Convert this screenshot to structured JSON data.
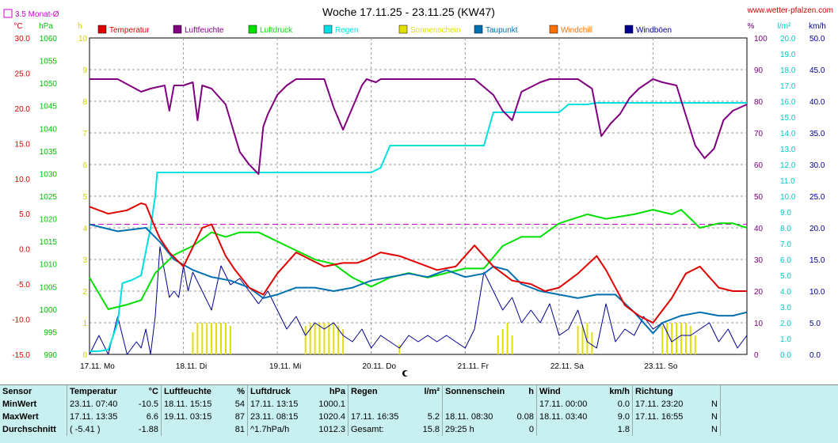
{
  "title": "Woche 17.11.25 - 23.11.25 (KW47)",
  "site": "www.wetter-pfalzen.com",
  "monthly_avg_label": "3.5 Monat-Ø",
  "colors": {
    "temp": "#e00000",
    "hum": "#800080",
    "press": "#00e000",
    "rain": "#00e0e0",
    "sun": "#e0e000",
    "dew": "#0070b0",
    "chill": "#ff7000",
    "gust": "#000090",
    "avg_line": "#d000d0"
  },
  "chart_data": {
    "type": "line",
    "title": "Woche 17.11.25 - 23.11.25 (KW47)",
    "x_days": [
      "17.11. Mo",
      "18.11. Di",
      "19.11. Mi",
      "20.11. Do",
      "21.11. Fr",
      "22.11. Sa",
      "23.11. So"
    ],
    "axes": {
      "temp": {
        "unit": "°C",
        "range": [
          -15,
          30
        ],
        "ticks": [
          "30.0",
          "25.0",
          "20.0",
          "15.0",
          "10.0",
          "5.0",
          "0.0",
          "-5.0",
          "-10.0",
          "-15.0"
        ]
      },
      "press": {
        "unit": "hPa",
        "range": [
          990,
          1060
        ],
        "ticks": [
          "1060",
          "1055",
          "1050",
          "1045",
          "1040",
          "1035",
          "1030",
          "1025",
          "1020",
          "1015",
          "1010",
          "1005",
          "1000",
          "995",
          "990"
        ]
      },
      "sun": {
        "unit": "h",
        "range": [
          0,
          10
        ],
        "ticks": [
          "10",
          "9",
          "8",
          "7",
          "6",
          "5",
          "4",
          "3",
          "2",
          "1",
          "0"
        ]
      },
      "hum": {
        "unit": "%",
        "range": [
          0,
          100
        ],
        "ticks": [
          "100",
          "90",
          "80",
          "70",
          "60",
          "50",
          "40",
          "30",
          "20",
          "10",
          "0"
        ]
      },
      "rain": {
        "unit": "l/m²",
        "range": [
          0,
          20
        ],
        "ticks": [
          "20.0",
          "19.0",
          "18.0",
          "17.0",
          "16.0",
          "15.0",
          "14.0",
          "13.0",
          "12.0",
          "11.0",
          "10.0",
          "9.0",
          "8.0",
          "7.0",
          "6.0",
          "5.0",
          "4.0",
          "3.0",
          "2.0",
          "1.0",
          "0.0"
        ]
      },
      "wind": {
        "unit": "km/h",
        "range": [
          0,
          50
        ],
        "ticks": [
          "50.0",
          "45.0",
          "40.0",
          "35.0",
          "30.0",
          "25.0",
          "20.0",
          "15.0",
          "10.0",
          "5.0",
          "0.0"
        ]
      }
    },
    "legend": [
      "Temperatur",
      "Luftfeuchte",
      "Luftdruck",
      "Regen",
      "Sonnenschein",
      "Taupunkt",
      "Windchill",
      "Windböen"
    ],
    "monthly_avg_temp": 3.5,
    "series": [
      {
        "name": "Temperatur",
        "axis": "temp",
        "color": "#e00000",
        "x": [
          0,
          0.2,
          0.4,
          0.55,
          0.6,
          0.7,
          0.75,
          0.85,
          1.0,
          1.2,
          1.3,
          1.45,
          1.55,
          1.7,
          1.85,
          2.0,
          2.2,
          2.35,
          2.5,
          2.7,
          2.85,
          2.95,
          3.1,
          3.3,
          3.5,
          3.7,
          3.9,
          4.1,
          4.3,
          4.5,
          4.7,
          4.85,
          5.0,
          5.2,
          5.4,
          5.5,
          5.7,
          5.85,
          6.0,
          6.2,
          6.35,
          6.5,
          6.7,
          6.85,
          7.0
        ],
        "y": [
          6.0,
          5.0,
          5.5,
          6.5,
          6.3,
          3.0,
          1.5,
          -0.5,
          -2.5,
          3.0,
          3.5,
          -1.0,
          -3.0,
          -5.5,
          -6.5,
          -3.5,
          -0.5,
          -1.5,
          -2.5,
          -2.0,
          -2.0,
          -1.5,
          -0.5,
          -1.0,
          -2.0,
          -3.0,
          -2.5,
          0.5,
          -2.5,
          -4.5,
          -5.0,
          -6.0,
          -5.5,
          -3.5,
          -1.0,
          -3.0,
          -8.0,
          -9.5,
          -10.5,
          -7.0,
          -3.5,
          -2.5,
          -5.5,
          -6.0,
          -6.0
        ]
      },
      {
        "name": "Taupunkt",
        "axis": "temp",
        "color": "#0070b0",
        "x": [
          0,
          0.3,
          0.6,
          0.75,
          0.9,
          1.1,
          1.3,
          1.5,
          1.7,
          1.85,
          2.0,
          2.2,
          2.4,
          2.6,
          2.8,
          3.0,
          3.2,
          3.4,
          3.6,
          3.8,
          4.0,
          4.2,
          4.3,
          4.45,
          4.6,
          4.8,
          5.0,
          5.2,
          5.4,
          5.6,
          5.8,
          6.0,
          6.1,
          6.3,
          6.5,
          6.7,
          6.85,
          7.0
        ],
        "y": [
          3.5,
          2.5,
          3.0,
          1.0,
          -1.5,
          -3.0,
          -4.0,
          -4.5,
          -5.5,
          -7.0,
          -6.5,
          -5.5,
          -5.5,
          -6.0,
          -5.5,
          -4.5,
          -4.0,
          -3.5,
          -4.0,
          -3.0,
          -4.0,
          -3.5,
          -2.5,
          -3.0,
          -5.0,
          -6.0,
          -6.5,
          -7.0,
          -6.5,
          -6.5,
          -9.0,
          -12.0,
          -10.5,
          -9.5,
          -9.0,
          -9.5,
          -9.5,
          -9.0
        ]
      },
      {
        "name": "Luftdruck",
        "axis": "press",
        "color": "#00e000",
        "x": [
          0,
          0.2,
          0.4,
          0.55,
          0.7,
          0.9,
          1.1,
          1.3,
          1.45,
          1.6,
          1.8,
          2.0,
          2.2,
          2.4,
          2.6,
          2.8,
          3.0,
          3.2,
          3.4,
          3.6,
          3.8,
          4.0,
          4.2,
          4.4,
          4.6,
          4.8,
          5.0,
          5.3,
          5.5,
          5.8,
          6.0,
          6.2,
          6.3,
          6.5,
          6.7,
          6.85,
          7.0
        ],
        "y": [
          1007,
          1000,
          1001,
          1002,
          1008,
          1012,
          1014,
          1017,
          1016,
          1017,
          1017,
          1015,
          1013,
          1011,
          1010,
          1007,
          1005,
          1007,
          1008,
          1007,
          1008,
          1009,
          1009,
          1014,
          1016,
          1016,
          1019,
          1021,
          1020,
          1021,
          1022,
          1021,
          1022,
          1018,
          1019,
          1019,
          1018
        ]
      },
      {
        "name": "Luftfeuchte",
        "axis": "hum",
        "color": "#800080",
        "x": [
          0,
          0.3,
          0.55,
          0.65,
          0.8,
          0.85,
          0.9,
          1.0,
          1.1,
          1.15,
          1.2,
          1.3,
          1.45,
          1.6,
          1.7,
          1.8,
          1.85,
          1.9,
          2.0,
          2.1,
          2.2,
          2.35,
          2.5,
          2.6,
          2.7,
          2.8,
          2.9,
          2.95,
          3.05,
          3.1,
          3.3,
          3.5,
          3.7,
          3.9,
          4.1,
          4.3,
          4.4,
          4.5,
          4.6,
          4.8,
          4.9,
          5.0,
          5.2,
          5.35,
          5.45,
          5.55,
          5.65,
          5.75,
          5.85,
          6.0,
          6.1,
          6.25,
          6.45,
          6.55,
          6.65,
          6.75,
          6.85,
          7.0
        ],
        "y": [
          87,
          87,
          83,
          84,
          85,
          77,
          85,
          85,
          86,
          74,
          85,
          84,
          79,
          64,
          60,
          57,
          72,
          76,
          82,
          85,
          87,
          87,
          87,
          78,
          71,
          78,
          85,
          87,
          86,
          87,
          87,
          87,
          87,
          87,
          87,
          82,
          77,
          74,
          83,
          86,
          87,
          87,
          87,
          84,
          69,
          73,
          76,
          81,
          84,
          87,
          86,
          85,
          66,
          62,
          65,
          74,
          77,
          79
        ]
      },
      {
        "name": "Regen",
        "axis": "rain",
        "color": "#00e0e0",
        "x": [
          0,
          0.1,
          0.2,
          0.3,
          0.35,
          0.45,
          0.55,
          0.6,
          0.65,
          0.7,
          0.72,
          1.0,
          1.5,
          2.0,
          2.5,
          3.0,
          3.1,
          3.2,
          3.4,
          4.0,
          4.2,
          4.3,
          4.6,
          5.0,
          5.1,
          5.3,
          5.4,
          5.8,
          6.5,
          7.0
        ],
        "y": [
          0.2,
          0.2,
          0.3,
          2.0,
          4.5,
          4.7,
          5.0,
          6.5,
          8.0,
          10.0,
          11.5,
          11.5,
          11.5,
          11.5,
          11.5,
          11.5,
          11.8,
          13.2,
          13.2,
          13.2,
          13.2,
          15.3,
          15.3,
          15.3,
          15.8,
          15.8,
          15.9,
          15.9,
          15.9,
          15.9
        ]
      },
      {
        "name": "Windböen",
        "axis": "wind",
        "color": "#000090",
        "x": [
          0,
          0.1,
          0.2,
          0.3,
          0.4,
          0.5,
          0.55,
          0.6,
          0.65,
          0.7,
          0.75,
          0.8,
          0.85,
          0.9,
          0.95,
          1.0,
          1.05,
          1.1,
          1.2,
          1.3,
          1.4,
          1.5,
          1.6,
          1.7,
          1.8,
          1.9,
          2.0,
          2.1,
          2.2,
          2.3,
          2.4,
          2.5,
          2.6,
          2.7,
          2.8,
          2.9,
          3.0,
          3.1,
          3.2,
          3.3,
          3.4,
          3.5,
          3.6,
          3.7,
          3.8,
          3.9,
          4.0,
          4.1,
          4.2,
          4.3,
          4.4,
          4.5,
          4.6,
          4.7,
          4.8,
          4.9,
          5.0,
          5.1,
          5.2,
          5.3,
          5.4,
          5.5,
          5.6,
          5.7,
          5.8,
          5.9,
          6.0,
          6.1,
          6.2,
          6.3,
          6.4,
          6.5,
          6.6,
          6.7,
          6.8,
          6.9,
          7.0
        ],
        "y": [
          0,
          3,
          0,
          6,
          0,
          2,
          1,
          4,
          0,
          6,
          17,
          13,
          9,
          10,
          9,
          14,
          10,
          13,
          10,
          7,
          14,
          11,
          12,
          10,
          8,
          10,
          7,
          4,
          6,
          3,
          5,
          4,
          5,
          3,
          2,
          4,
          1,
          3,
          2,
          1,
          3,
          2,
          3,
          2,
          3,
          2,
          1,
          4,
          13,
          10,
          7,
          9,
          5,
          7,
          5,
          8,
          3,
          4,
          7,
          2,
          1,
          8,
          2,
          4,
          3,
          6,
          4,
          5,
          2,
          3,
          3,
          4,
          5,
          2,
          4,
          1,
          3
        ]
      },
      {
        "name": "Sonnenschein",
        "axis": "sun",
        "color": "#e0e000",
        "type": "bar",
        "x": [
          1.1,
          1.15,
          1.2,
          1.25,
          1.3,
          1.35,
          1.4,
          1.45,
          1.5,
          2.3,
          2.35,
          2.4,
          2.45,
          2.5,
          2.55,
          2.6,
          2.65,
          2.7,
          3.3,
          4.35,
          4.4,
          4.45,
          4.5,
          5.2,
          5.25,
          5.3,
          5.35,
          6.1,
          6.15,
          6.2,
          6.25,
          6.3,
          6.35,
          6.4,
          6.45
        ],
        "y": [
          0.7,
          1.0,
          1.0,
          1.0,
          1.0,
          1.0,
          1.0,
          1.0,
          0.9,
          0.9,
          1.0,
          1.0,
          1.0,
          1.0,
          1.0,
          1.0,
          0.9,
          0.8,
          0.3,
          0.6,
          0.8,
          1.0,
          0.6,
          0.9,
          0.9,
          1.0,
          0.7,
          0.9,
          1.0,
          1.0,
          1.0,
          1.0,
          1.0,
          0.9,
          0.6
        ]
      }
    ]
  },
  "table": {
    "headers": [
      "Sensor",
      "Temperatur",
      "°C",
      "Luftfeuchte",
      "%",
      "Luftdruck",
      "hPa",
      "Regen",
      "l/m²",
      "Sonnenschein",
      "h",
      "Wind",
      "km/h",
      "Richtung"
    ],
    "rows": [
      [
        "MinWert",
        "23.11.  07:40",
        "-10.5",
        "18.11.  15:15",
        "54",
        "17.11.  13:15",
        "1000.1",
        "",
        "",
        "",
        "",
        "17.11.  00:00",
        "0.0",
        "17.11.  23:20",
        "N"
      ],
      [
        "MaxWert",
        "17.11.  13:35",
        "6.6",
        "19.11.  03:15",
        "87",
        "23.11.  08:15",
        "1020.4",
        "17.11.  16:35",
        "5.2",
        "18.11.  08:30",
        "0.08",
        "18.11.  03:40",
        "9.0",
        "17.11.  16:55",
        "N"
      ],
      [
        "Durchschnitt",
        "( -5.41 )",
        "-1.88",
        "",
        "81",
        "^1.7hPa/h",
        "1012.3",
        "Gesamt:",
        "15.8",
        "29:25 h",
        "0",
        "",
        "1.8",
        "",
        "N"
      ]
    ]
  }
}
